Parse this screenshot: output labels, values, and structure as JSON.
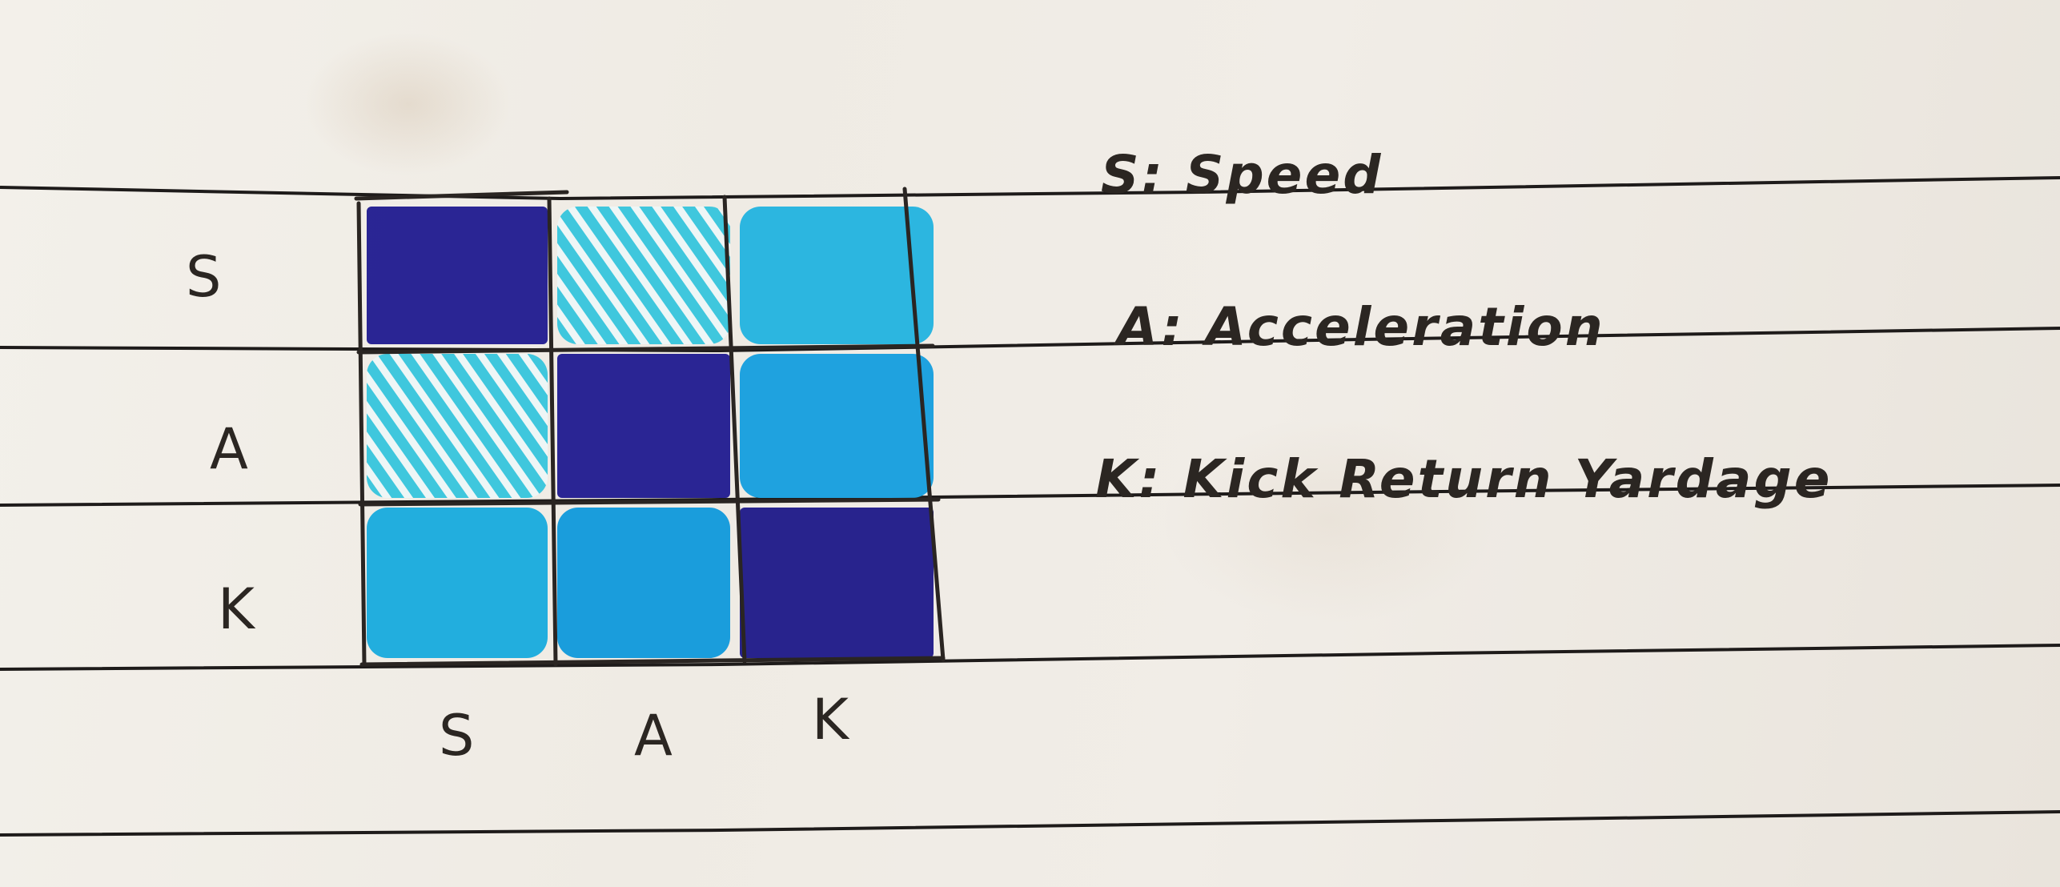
{
  "diagram": {
    "row_labels": [
      "S",
      "A",
      "K"
    ],
    "col_labels": [
      "S",
      "A",
      "K"
    ],
    "cells": [
      [
        {
          "shade": "dark",
          "color": "#1f1a8f"
        },
        {
          "shade": "hatched",
          "color": "#3fc7dd"
        },
        {
          "shade": "light",
          "color": "#2cb6e0"
        }
      ],
      [
        {
          "shade": "hatched",
          "color": "#3fc7dd"
        },
        {
          "shade": "dark",
          "color": "#1f1a8f"
        },
        {
          "shade": "medium",
          "color": "#1fa2df"
        }
      ],
      [
        {
          "shade": "medium",
          "color": "#22aede"
        },
        {
          "shade": "medium",
          "color": "#1a9ddc"
        },
        {
          "shade": "dark",
          "color": "#1c1888"
        }
      ]
    ]
  },
  "legend": {
    "items": [
      "S: Speed",
      "A: Acceleration",
      "K: Kick Return Yardage"
    ]
  },
  "colors": {
    "paper": "#efebe4",
    "ink": "#2b2622",
    "rule_line": "#1e1b1a"
  }
}
